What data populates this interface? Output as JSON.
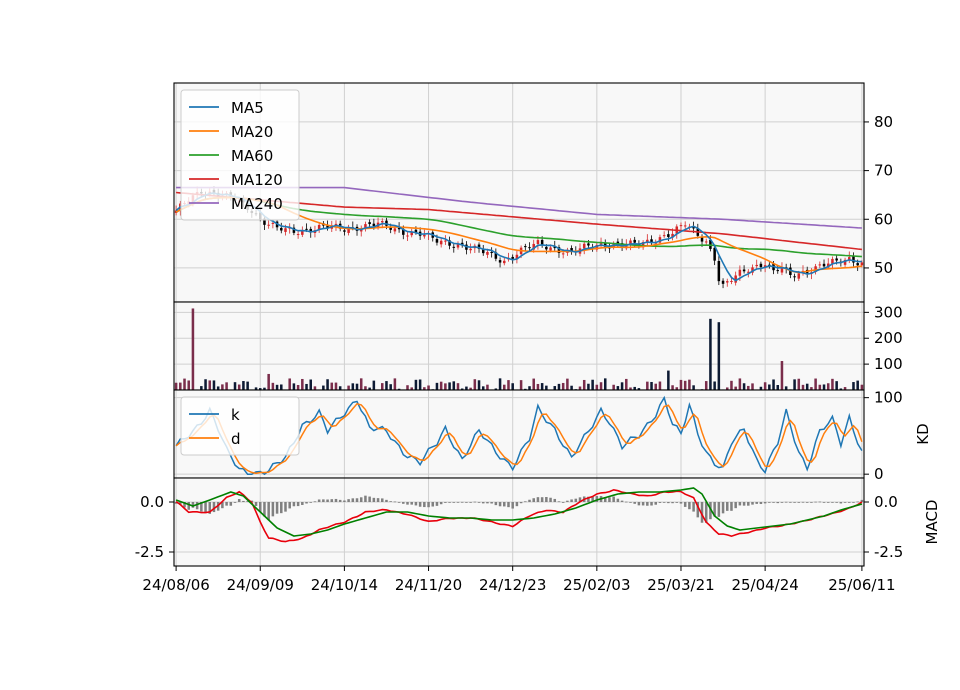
{
  "chart_data": {
    "type": "stock-chart",
    "colors": {
      "MA5": "#1f77b4",
      "MA20": "#ff7f0e",
      "MA60": "#2ca02c",
      "MA120": "#d62728",
      "MA240": "#9467bd",
      "k": "#1f77b4",
      "d": "#ff7f0e",
      "dif": "#e8000b",
      "macd_signal": "#008000",
      "osc": "#808080",
      "up": "#d62728",
      "down": "#000000",
      "vol_up": "#7a2d4b",
      "vol_down": "#0d1a33"
    },
    "x_tick_labels": [
      "24/08/06",
      "24/09/09",
      "24/10/14",
      "24/11/20",
      "24/12/23",
      "25/02/03",
      "25/03/21",
      "25/04/24",
      "25/06/11"
    ],
    "x_tick_index": [
      0,
      20,
      40,
      60,
      80,
      100,
      120,
      140,
      163
    ],
    "n_bars": 164,
    "price_panel": {
      "ylim": [
        43,
        88
      ],
      "yticks": [
        50,
        60,
        70,
        80
      ],
      "legend": [
        "MA5",
        "MA20",
        "MA60",
        "MA120",
        "MA240"
      ],
      "legend_loc": "upper-left",
      "close_anchors": [
        [
          0,
          61.5
        ],
        [
          3,
          64
        ],
        [
          6,
          66
        ],
        [
          10,
          65
        ],
        [
          14,
          64
        ],
        [
          18,
          62
        ],
        [
          20,
          60
        ],
        [
          24,
          58
        ],
        [
          28,
          57.5
        ],
        [
          32,
          58
        ],
        [
          36,
          58.5
        ],
        [
          40,
          58
        ],
        [
          44,
          58.5
        ],
        [
          48,
          59
        ],
        [
          50,
          58.5
        ],
        [
          54,
          57.5
        ],
        [
          58,
          57
        ],
        [
          62,
          55.5
        ],
        [
          66,
          55
        ],
        [
          70,
          54
        ],
        [
          74,
          53
        ],
        [
          78,
          51.5
        ],
        [
          82,
          53.5
        ],
        [
          86,
          55
        ],
        [
          90,
          54
        ],
        [
          94,
          53
        ],
        [
          98,
          54.5
        ],
        [
          102,
          55
        ],
        [
          106,
          54.5
        ],
        [
          110,
          55
        ],
        [
          114,
          56
        ],
        [
          118,
          57
        ],
        [
          121,
          59
        ],
        [
          124,
          57
        ],
        [
          126,
          55.5
        ],
        [
          128,
          52
        ],
        [
          129,
          47.5
        ],
        [
          130,
          46
        ],
        [
          132,
          47.5
        ],
        [
          134,
          49
        ],
        [
          136,
          50
        ],
        [
          138,
          50.5
        ],
        [
          140,
          51
        ],
        [
          142,
          49
        ],
        [
          144,
          50
        ],
        [
          146,
          48.5
        ],
        [
          148,
          49
        ],
        [
          150,
          49.5
        ],
        [
          152,
          50
        ],
        [
          154,
          50.5
        ],
        [
          156,
          51
        ],
        [
          158,
          51.5
        ],
        [
          160,
          52
        ],
        [
          163,
          51
        ]
      ],
      "ma120_anchors": [
        [
          0,
          65.5
        ],
        [
          40,
          62.5
        ],
        [
          60,
          62
        ],
        [
          100,
          59
        ],
        [
          130,
          57
        ],
        [
          163,
          53.8
        ]
      ],
      "ma240_anchors": [
        [
          0,
          66.5
        ],
        [
          40,
          66.5
        ],
        [
          70,
          63.5
        ],
        [
          100,
          61
        ],
        [
          130,
          60
        ],
        [
          163,
          58.2
        ]
      ]
    },
    "volume_panel": {
      "ylim": [
        0,
        340
      ],
      "yticks": [
        100,
        200,
        300
      ],
      "spikes": [
        [
          4,
          315
        ],
        [
          127,
          275
        ],
        [
          129,
          262
        ],
        [
          144,
          112
        ],
        [
          117,
          75
        ],
        [
          22,
          62
        ]
      ]
    },
    "kd_panel": {
      "ylim": [
        -5,
        110
      ],
      "yticks": [
        0,
        100
      ],
      "ylabel": "KD",
      "legend": [
        "k",
        "d"
      ],
      "legend_loc": "upper-left",
      "k_anchors": [
        [
          0,
          35
        ],
        [
          4,
          55
        ],
        [
          8,
          85
        ],
        [
          10,
          60
        ],
        [
          12,
          30
        ],
        [
          15,
          5
        ],
        [
          18,
          2
        ],
        [
          22,
          5
        ],
        [
          26,
          20
        ],
        [
          30,
          65
        ],
        [
          34,
          80
        ],
        [
          36,
          55
        ],
        [
          40,
          80
        ],
        [
          43,
          100
        ],
        [
          46,
          60
        ],
        [
          50,
          55
        ],
        [
          54,
          30
        ],
        [
          58,
          15
        ],
        [
          62,
          40
        ],
        [
          64,
          60
        ],
        [
          68,
          20
        ],
        [
          72,
          55
        ],
        [
          76,
          30
        ],
        [
          80,
          10
        ],
        [
          84,
          45
        ],
        [
          86,
          85
        ],
        [
          90,
          60
        ],
        [
          94,
          20
        ],
        [
          98,
          55
        ],
        [
          101,
          85
        ],
        [
          103,
          70
        ],
        [
          106,
          35
        ],
        [
          110,
          50
        ],
        [
          114,
          80
        ],
        [
          116,
          100
        ],
        [
          118,
          65
        ],
        [
          120,
          50
        ],
        [
          122,
          90
        ],
        [
          124,
          55
        ],
        [
          126,
          30
        ],
        [
          128,
          15
        ],
        [
          130,
          5
        ],
        [
          132,
          40
        ],
        [
          135,
          60
        ],
        [
          138,
          20
        ],
        [
          140,
          5
        ],
        [
          143,
          40
        ],
        [
          145,
          80
        ],
        [
          148,
          30
        ],
        [
          150,
          10
        ],
        [
          153,
          55
        ],
        [
          156,
          70
        ],
        [
          158,
          40
        ],
        [
          160,
          75
        ],
        [
          163,
          30
        ]
      ]
    },
    "macd_panel": {
      "ylim": [
        -3.2,
        1.2
      ],
      "yticks": [
        0.0,
        -2.5
      ],
      "ytick_labels": [
        "0.0",
        "-2.5"
      ],
      "ylabel": "MACD",
      "dif_anchors": [
        [
          0,
          0.0
        ],
        [
          3,
          -0.5
        ],
        [
          8,
          -0.5
        ],
        [
          12,
          0.2
        ],
        [
          15,
          0.5
        ],
        [
          18,
          0.0
        ],
        [
          20,
          -1.0
        ],
        [
          22,
          -1.8
        ],
        [
          26,
          -2.0
        ],
        [
          30,
          -1.8
        ],
        [
          34,
          -1.4
        ],
        [
          40,
          -1.0
        ],
        [
          45,
          -0.5
        ],
        [
          50,
          -0.4
        ],
        [
          55,
          -0.6
        ],
        [
          60,
          -1.0
        ],
        [
          65,
          -0.8
        ],
        [
          70,
          -0.8
        ],
        [
          75,
          -1.0
        ],
        [
          80,
          -1.2
        ],
        [
          84,
          -0.7
        ],
        [
          88,
          -0.4
        ],
        [
          92,
          -0.5
        ],
        [
          96,
          0.0
        ],
        [
          100,
          0.4
        ],
        [
          104,
          0.6
        ],
        [
          108,
          0.4
        ],
        [
          112,
          0.3
        ],
        [
          116,
          0.5
        ],
        [
          120,
          0.5
        ],
        [
          123,
          0.2
        ],
        [
          126,
          -1.0
        ],
        [
          129,
          -1.6
        ],
        [
          132,
          -1.7
        ],
        [
          136,
          -1.5
        ],
        [
          140,
          -1.3
        ],
        [
          144,
          -1.2
        ],
        [
          148,
          -1.0
        ],
        [
          152,
          -0.8
        ],
        [
          156,
          -0.6
        ],
        [
          160,
          -0.3
        ],
        [
          163,
          0.0
        ]
      ],
      "sig_anchors": [
        [
          0,
          0.1
        ],
        [
          4,
          -0.2
        ],
        [
          8,
          0.1
        ],
        [
          13,
          0.5
        ],
        [
          16,
          0.3
        ],
        [
          20,
          -0.5
        ],
        [
          24,
          -1.3
        ],
        [
          28,
          -1.7
        ],
        [
          32,
          -1.6
        ],
        [
          36,
          -1.4
        ],
        [
          40,
          -1.1
        ],
        [
          45,
          -0.8
        ],
        [
          50,
          -0.5
        ],
        [
          55,
          -0.5
        ],
        [
          60,
          -0.7
        ],
        [
          65,
          -0.8
        ],
        [
          70,
          -0.8
        ],
        [
          75,
          -0.9
        ],
        [
          80,
          -0.9
        ],
        [
          85,
          -0.8
        ],
        [
          90,
          -0.6
        ],
        [
          95,
          -0.3
        ],
        [
          100,
          0.1
        ],
        [
          105,
          0.4
        ],
        [
          110,
          0.5
        ],
        [
          115,
          0.5
        ],
        [
          120,
          0.6
        ],
        [
          123,
          0.7
        ],
        [
          125,
          0.4
        ],
        [
          128,
          -0.7
        ],
        [
          131,
          -1.2
        ],
        [
          134,
          -1.4
        ],
        [
          138,
          -1.3
        ],
        [
          142,
          -1.2
        ],
        [
          146,
          -1.1
        ],
        [
          150,
          -0.9
        ],
        [
          154,
          -0.7
        ],
        [
          158,
          -0.4
        ],
        [
          163,
          -0.1
        ]
      ]
    }
  }
}
